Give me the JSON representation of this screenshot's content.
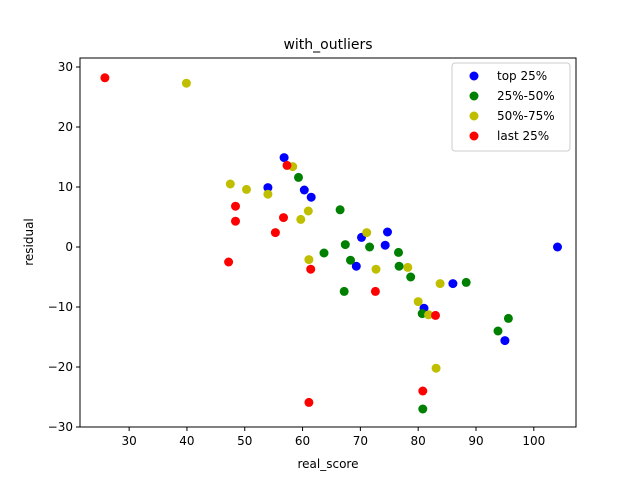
{
  "chart_data": {
    "type": "scatter",
    "title": "with_outliers",
    "xlabel": "real_score",
    "ylabel": "residual",
    "xlim": [
      21.5,
      107.3
    ],
    "ylim": [
      -30,
      31.5
    ],
    "xticks": [
      30,
      40,
      50,
      60,
      70,
      80,
      90,
      100
    ],
    "yticks": [
      -30,
      -20,
      -10,
      0,
      10,
      20,
      30
    ],
    "legend_position": "top-right",
    "series": [
      {
        "name": "top 25%",
        "color": "#0000ff",
        "points": [
          [
            56.8,
            14.9
          ],
          [
            54.0,
            9.9
          ],
          [
            60.3,
            9.5
          ],
          [
            61.5,
            8.3
          ],
          [
            70.2,
            1.6
          ],
          [
            74.7,
            2.5
          ],
          [
            74.3,
            0.3
          ],
          [
            69.3,
            -3.2
          ],
          [
            104.1,
            0.0
          ],
          [
            86.0,
            -6.1
          ],
          [
            81.0,
            -10.2
          ],
          [
            95.0,
            -15.6
          ]
        ]
      },
      {
        "name": "25%-50%",
        "color": "#008000",
        "points": [
          [
            59.3,
            11.6
          ],
          [
            66.5,
            6.2
          ],
          [
            67.4,
            0.4
          ],
          [
            71.6,
            0.0
          ],
          [
            63.7,
            -1.0
          ],
          [
            68.3,
            -2.2
          ],
          [
            76.6,
            -0.9
          ],
          [
            76.7,
            -3.2
          ],
          [
            78.7,
            -5.0
          ],
          [
            67.2,
            -7.4
          ],
          [
            88.3,
            -5.9
          ],
          [
            80.7,
            -11.1
          ],
          [
            93.8,
            -14.0
          ],
          [
            95.6,
            -11.9
          ],
          [
            80.8,
            -27.0
          ]
        ]
      },
      {
        "name": "50%-75%",
        "color": "#bfbf00",
        "points": [
          [
            39.9,
            27.3
          ],
          [
            58.3,
            13.4
          ],
          [
            47.5,
            10.5
          ],
          [
            50.3,
            9.6
          ],
          [
            54.0,
            8.8
          ],
          [
            61.0,
            6.0
          ],
          [
            59.7,
            4.6
          ],
          [
            71.1,
            2.4
          ],
          [
            61.1,
            -2.1
          ],
          [
            72.7,
            -3.7
          ],
          [
            78.2,
            -3.4
          ],
          [
            83.8,
            -6.1
          ],
          [
            80.0,
            -9.1
          ],
          [
            81.8,
            -11.3
          ],
          [
            83.1,
            -20.2
          ]
        ]
      },
      {
        "name": "last 25%",
        "color": "#ff0000",
        "points": [
          [
            25.8,
            28.2
          ],
          [
            57.3,
            13.6
          ],
          [
            48.4,
            6.8
          ],
          [
            48.4,
            4.3
          ],
          [
            56.7,
            4.9
          ],
          [
            55.3,
            2.4
          ],
          [
            47.2,
            -2.5
          ],
          [
            61.4,
            -3.7
          ],
          [
            72.6,
            -7.4
          ],
          [
            83.0,
            -11.4
          ],
          [
            80.8,
            -24.0
          ],
          [
            61.1,
            -25.9
          ]
        ]
      }
    ]
  }
}
